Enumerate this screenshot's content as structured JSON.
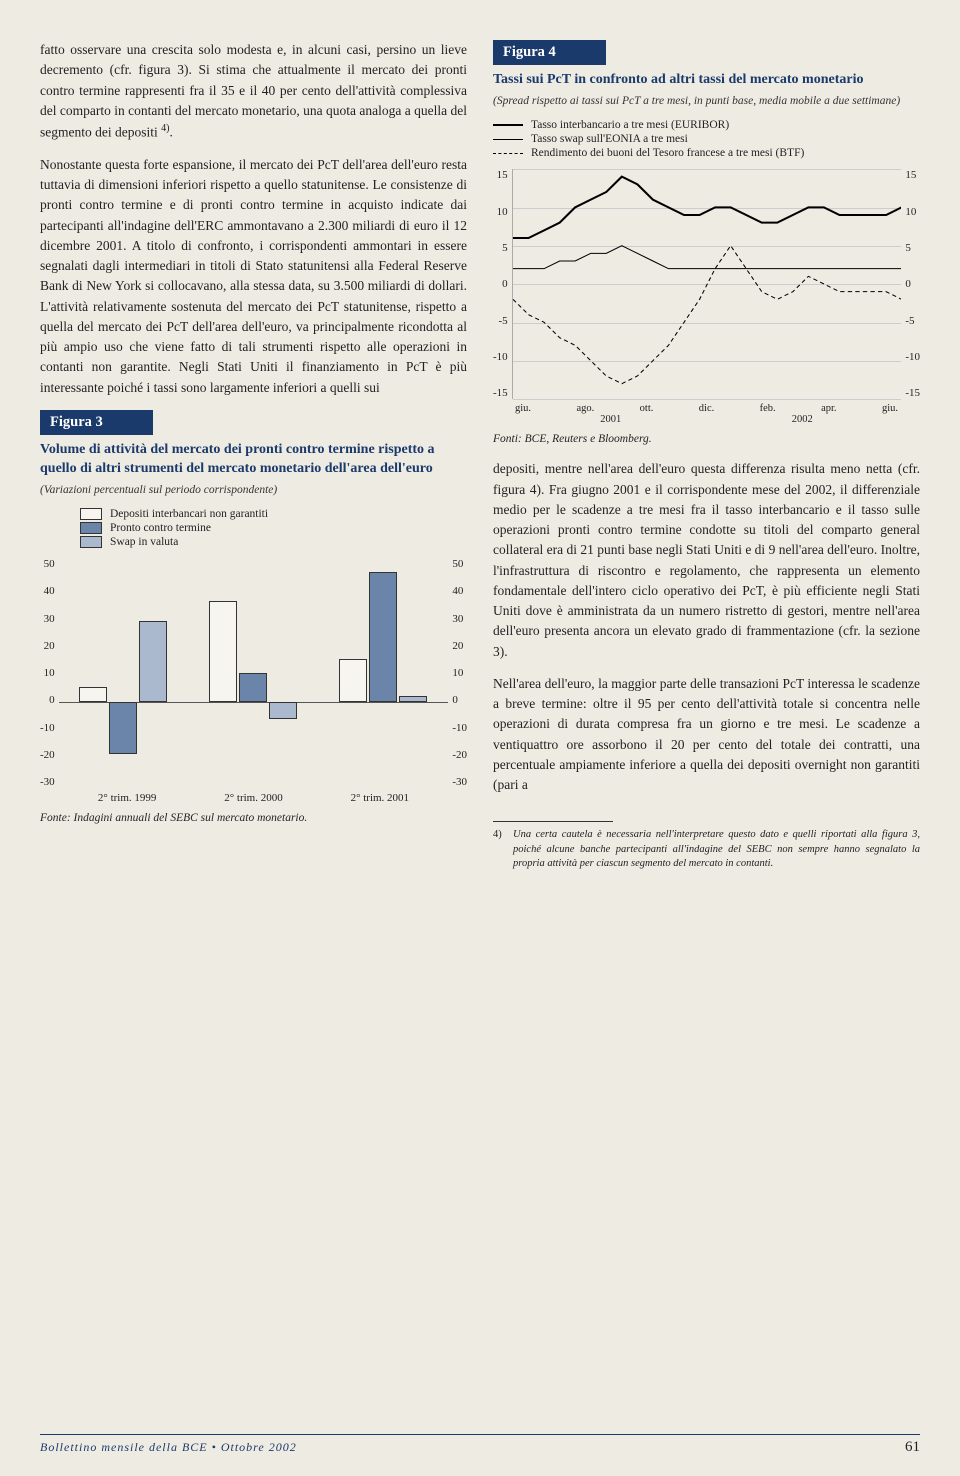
{
  "left": {
    "p1": "fatto osservare una crescita solo modesta e, in alcuni casi, persino un lieve decremento (cfr. figura 3). Si stima che attualmente il mercato dei pronti contro termine rappresenti fra il 35 e il 40 per cento dell'attività complessiva del comparto in contanti del mercato monetario, una quota analoga a quella del segmento dei depositi ",
    "sup1": "4)",
    "p1b": ".",
    "p2": "Nonostante questa forte espansione, il mercato dei PcT dell'area dell'euro resta tuttavia di dimensioni inferiori rispetto a quello statunitense. Le consistenze di pronti contro termine e di pronti contro termine in acquisto indicate dai partecipanti all'indagine dell'ERC ammontavano a 2.300 miliardi di euro il 12 dicembre 2001. A titolo di confronto, i corrispondenti ammontari in essere segnalati dagli intermediari in titoli di Stato statunitensi alla Federal Reserve Bank di New York si collocavano, alla stessa data, su 3.500 miliardi di dollari. L'attività relativamente sostenuta del mercato dei PcT statunitense, rispetto a quella del mercato dei PcT dell'area dell'euro, va principalmente ricondotta al più ampio uso che viene fatto di tali strumenti rispetto alle operazioni in contanti non garantite. Negli Stati Uniti il finanziamento in PcT è più interessante poiché i tassi sono largamente inferiori a quelli sui"
  },
  "figure3": {
    "title_bar": "Figura 3",
    "heading": "Volume di attività del mercato dei pronti contro termine rispetto a quello di altri strumenti del mercato monetario dell'area dell'euro",
    "sub": "(Variazioni percentuali sul periodo corrispondente)",
    "legend": {
      "a": "Depositi interbancari non garantiti",
      "b": "Pronto contro termine",
      "c": "Swap in valuta"
    },
    "y_ticks": [
      "50",
      "40",
      "30",
      "20",
      "10",
      "0",
      "-10",
      "-20",
      "-30"
    ],
    "x_labels": [
      "2° trim. 1999",
      "2° trim. 2000",
      "2° trim. 2001"
    ],
    "colors": {
      "a": "#f7f5ef",
      "b": "#6a85a9",
      "c": "#aab9ce"
    },
    "data": {
      "1999": {
        "a": 5,
        "b": -18,
        "c": 28
      },
      "2000": {
        "a": 35,
        "b": 10,
        "c": -6
      },
      "2001": {
        "a": 15,
        "b": 45,
        "c": 2
      }
    },
    "range": {
      "min": -30,
      "max": 50
    },
    "fonte": "Fonte: Indagini annuali del SEBC sul mercato monetario."
  },
  "figure4": {
    "title_bar": "Figura 4",
    "heading": "Tassi sui PcT in confronto ad altri tassi del mercato monetario",
    "sub": "(Spread rispetto ai tassi sui PcT a tre mesi, in punti base, media mobile a due settimane)",
    "legend": {
      "a": "Tasso interbancario a tre mesi (EURIBOR)",
      "b": "Tasso swap sull'EONIA a tre mesi",
      "c": "Rendimento dei buoni del Tesoro francese a tre mesi (BTF)"
    },
    "y_ticks": [
      "15",
      "10",
      "5",
      "0",
      "-5",
      "-10",
      "-15"
    ],
    "x_labels": [
      "giu.",
      "ago.",
      "ott.",
      "dic.",
      "feb.",
      "apr.",
      "giu."
    ],
    "years": [
      "2001",
      "2002"
    ],
    "range": {
      "min": -15,
      "max": 15
    },
    "series": {
      "a": [
        6,
        6,
        7,
        8,
        10,
        11,
        12,
        14,
        13,
        11,
        10,
        9,
        9,
        10,
        10,
        9,
        8,
        8,
        9,
        10,
        10,
        9,
        9,
        9,
        9,
        10
      ],
      "b": [
        2,
        2,
        2,
        3,
        3,
        4,
        4,
        5,
        4,
        3,
        2,
        2,
        2,
        2,
        2,
        2,
        2,
        2,
        2,
        2,
        2,
        2,
        2,
        2,
        2,
        2
      ],
      "c": [
        -2,
        -4,
        -5,
        -7,
        -8,
        -10,
        -12,
        -13,
        -12,
        -10,
        -8,
        -5,
        -2,
        2,
        5,
        2,
        -1,
        -2,
        -1,
        1,
        0,
        -1,
        -1,
        -1,
        -1,
        -2
      ]
    },
    "fonte": "Fonti: BCE, Reuters e Bloomberg."
  },
  "right": {
    "p1": "depositi, mentre nell'area dell'euro questa differenza risulta meno netta (cfr. figura 4). Fra giugno 2001 e il corrispondente mese del 2002, il differenziale medio per le scadenze a tre mesi fra il tasso interbancario e il tasso sulle operazioni pronti contro termine condotte su titoli del comparto general collateral era di 21 punti base negli Stati Uniti e di 9 nell'area dell'euro. Inoltre, l'infrastruttura di riscontro e regolamento, che rappresenta un elemento fondamentale dell'intero ciclo operativo dei PcT, è più efficiente negli Stati Uniti dove è amministrata da un numero ristretto di gestori, mentre nell'area dell'euro presenta ancora un elevato grado di frammentazione (cfr. la sezione 3).",
    "p2": "Nell'area dell'euro, la maggior parte delle transazioni PcT interessa le scadenze a breve termine: oltre il 95 per cento dell'attività totale si concentra nelle operazioni di durata compresa fra un giorno e tre mesi. Le scadenze a ventiquattro ore assorbono il 20 per cento del totale dei contratti, una percentuale ampiamente inferiore a quella dei depositi overnight non garantiti (pari a"
  },
  "footnote": {
    "num": "4)",
    "text": "Una certa cautela è necessaria nell'interpretare questo dato e quelli riportati alla figura 3, poiché alcune banche partecipanti all'indagine del SEBC non sempre hanno segnalato la propria attività per ciascun segmento del mercato in contanti."
  },
  "footer": {
    "text": "Bollettino mensile della BCE • Ottobre 2002",
    "page": "61"
  }
}
